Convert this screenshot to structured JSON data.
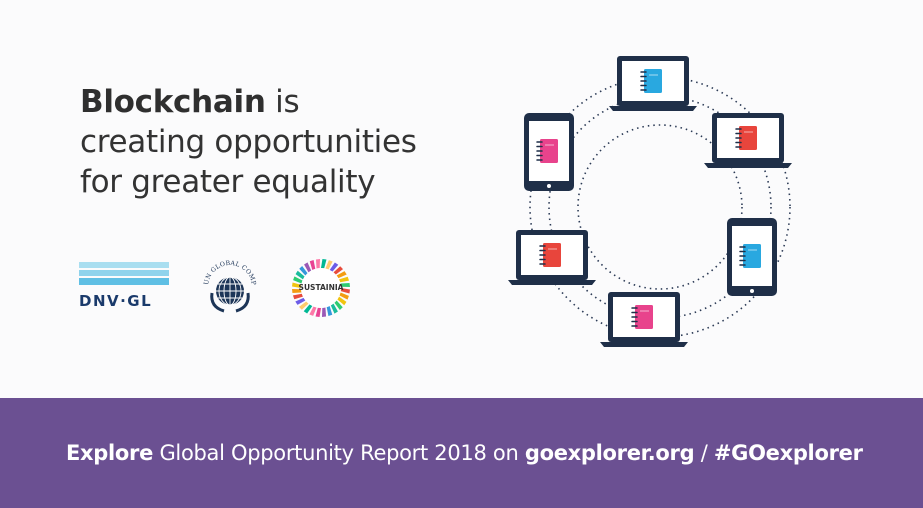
{
  "headline": {
    "bold": "Blockchain",
    "line1_rest": " is",
    "line2": "creating opportunities",
    "line3": "for greater equality"
  },
  "logos": {
    "dnv": "DNV·GL",
    "ungc": "UN GLOBAL COMPACT",
    "sustainia": "SUSTAINIA"
  },
  "banner": {
    "explore": "Explore",
    "text1": " Global Opportunity Report 2018 on ",
    "site": "goexplorer.org",
    "sep": " / ",
    "hashtag": "#GOexplorer"
  },
  "colors": {
    "banner": "#6b5092",
    "device_dark": "#1f2f48",
    "notebook_blue": "#29a8e0",
    "notebook_red": "#e8453c",
    "notebook_pink": "#e8438c"
  },
  "icons": [
    "laptop-icon",
    "tablet-icon",
    "notebook-icon",
    "globe-icon"
  ]
}
